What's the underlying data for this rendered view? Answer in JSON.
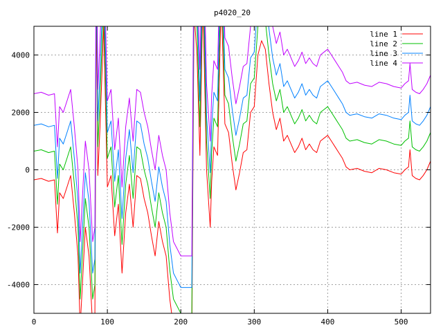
{
  "chart_data": {
    "type": "line",
    "title": "p4020_20",
    "xlabel": "",
    "ylabel": "",
    "xlim": [
      0,
      540
    ],
    "ylim": [
      -5000,
      5000
    ],
    "x_ticks": [
      0,
      100,
      200,
      300,
      400,
      500
    ],
    "y_ticks": [
      -4000,
      -2000,
      0,
      2000,
      4000
    ],
    "grid": true,
    "legend_position": "top-right",
    "base_line": {
      "x": [
        0,
        10,
        20,
        28,
        32,
        35,
        40,
        45,
        50,
        55,
        60,
        63,
        66,
        70,
        75,
        80,
        83,
        85,
        87,
        90,
        95,
        100,
        105,
        110,
        115,
        120,
        125,
        130,
        135,
        140,
        145,
        150,
        155,
        160,
        165,
        170,
        175,
        180,
        185,
        190,
        200,
        215,
        218,
        222,
        226,
        230,
        235,
        240,
        242,
        245,
        250,
        255,
        260,
        265,
        270,
        275,
        280,
        285,
        290,
        295,
        300,
        305,
        310,
        315,
        320,
        325,
        330,
        335,
        340,
        345,
        350,
        355,
        360,
        365,
        370,
        375,
        380,
        385,
        390,
        395,
        400,
        405,
        410,
        415,
        420,
        425,
        430,
        440,
        450,
        460,
        470,
        480,
        490,
        500,
        505,
        510,
        512,
        515,
        520,
        525,
        530,
        535,
        540
      ],
      "y": [
        -350,
        -300,
        -400,
        -350,
        -2200,
        -800,
        -1000,
        -600,
        -200,
        -1500,
        -3000,
        -5500,
        -4000,
        -2000,
        -3000,
        -5500,
        -5000,
        6000,
        -200,
        1500,
        5000,
        -600,
        -200,
        -2300,
        -1200,
        -3600,
        -1500,
        -500,
        -2000,
        -200,
        -300,
        -1000,
        -1500,
        -2300,
        -3000,
        -1800,
        -2500,
        -3000,
        -4500,
        -5500,
        -6000,
        -6000,
        5500,
        4000,
        500,
        6000,
        0,
        -2000,
        -400,
        800,
        500,
        6000,
        1600,
        1300,
        200,
        -700,
        -100,
        600,
        700,
        2000,
        2200,
        4000,
        4500,
        4200,
        3000,
        2000,
        1400,
        1800,
        1000,
        1200,
        900,
        600,
        800,
        1100,
        700,
        900,
        700,
        600,
        1000,
        1100,
        1200,
        1000,
        800,
        600,
        400,
        100,
        0,
        50,
        -50,
        -100,
        50,
        0,
        -100,
        -150,
        0,
        100,
        700,
        -200,
        -300,
        -350,
        -200,
        0,
        300
      ]
    },
    "series": [
      {
        "name": "line 1",
        "color": "#ff0000",
        "offset": 0
      },
      {
        "name": "line 2",
        "color": "#00c000",
        "offset": 1000
      },
      {
        "name": "line 3",
        "color": "#0080ff",
        "offset": 1900
      },
      {
        "name": "line 4",
        "color": "#c000ff",
        "offset": 3000
      }
    ]
  }
}
